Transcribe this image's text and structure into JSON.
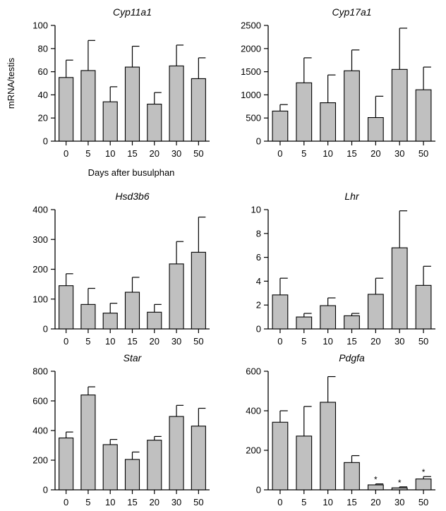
{
  "figure": {
    "ylabel": "mRNA/testis",
    "xlabel": "Days after busulphan"
  },
  "colors": {
    "bar_fill": "#c0c0c0",
    "stroke": "#000000"
  },
  "chart_data": [
    {
      "type": "bar",
      "title": "Cyp11a1",
      "categories": [
        "0",
        "5",
        "10",
        "15",
        "20",
        "30",
        "50"
      ],
      "values": [
        55,
        61,
        34,
        64,
        32,
        65,
        54
      ],
      "errors": [
        15,
        26,
        13,
        18,
        10,
        18,
        18
      ],
      "ylim": [
        0,
        100
      ],
      "yticks": [
        0,
        20,
        40,
        60,
        80,
        100
      ],
      "significant": []
    },
    {
      "type": "bar",
      "title": "Cyp17a1",
      "categories": [
        "0",
        "5",
        "10",
        "15",
        "20",
        "30",
        "50"
      ],
      "values": [
        650,
        1260,
        830,
        1520,
        510,
        1550,
        1110
      ],
      "errors": [
        140,
        540,
        600,
        450,
        460,
        890,
        490
      ],
      "ylim": [
        0,
        2500
      ],
      "yticks": [
        0,
        500,
        1000,
        1500,
        2000,
        2500
      ],
      "significant": []
    },
    {
      "type": "bar",
      "title": "Hsd3b6",
      "categories": [
        "0",
        "5",
        "10",
        "15",
        "20",
        "30",
        "50"
      ],
      "values": [
        145,
        82,
        53,
        123,
        56,
        218,
        257
      ],
      "errors": [
        40,
        54,
        33,
        50,
        26,
        75,
        118
      ],
      "ylim": [
        0,
        400
      ],
      "yticks": [
        0,
        100,
        200,
        300,
        400
      ],
      "significant": []
    },
    {
      "type": "bar",
      "title": "Lhr",
      "categories": [
        "0",
        "5",
        "10",
        "15",
        "20",
        "30",
        "50"
      ],
      "values": [
        2.85,
        1.0,
        1.95,
        1.1,
        2.9,
        6.8,
        3.65
      ],
      "errors": [
        1.4,
        0.3,
        0.65,
        0.2,
        1.35,
        3.1,
        1.6
      ],
      "ylim": [
        0,
        10
      ],
      "yticks": [
        0,
        2,
        4,
        6,
        8,
        10
      ],
      "significant": []
    },
    {
      "type": "bar",
      "title": "Star",
      "categories": [
        "0",
        "5",
        "10",
        "15",
        "20",
        "30",
        "50"
      ],
      "values": [
        350,
        640,
        305,
        205,
        335,
        495,
        430
      ],
      "errors": [
        40,
        55,
        35,
        50,
        25,
        75,
        120
      ],
      "ylim": [
        0,
        800
      ],
      "yticks": [
        0,
        200,
        400,
        600,
        800
      ],
      "significant": []
    },
    {
      "type": "bar",
      "title": "Pdgfa",
      "categories": [
        "0",
        "5",
        "10",
        "15",
        "20",
        "30",
        "50"
      ],
      "values": [
        342,
        272,
        443,
        138,
        25,
        10,
        55
      ],
      "errors": [
        58,
        150,
        130,
        35,
        5,
        5,
        12
      ],
      "ylim": [
        0,
        600
      ],
      "yticks": [
        0,
        200,
        400,
        600
      ],
      "significant": [
        4,
        5,
        6
      ],
      "significance_marker": "*"
    }
  ]
}
